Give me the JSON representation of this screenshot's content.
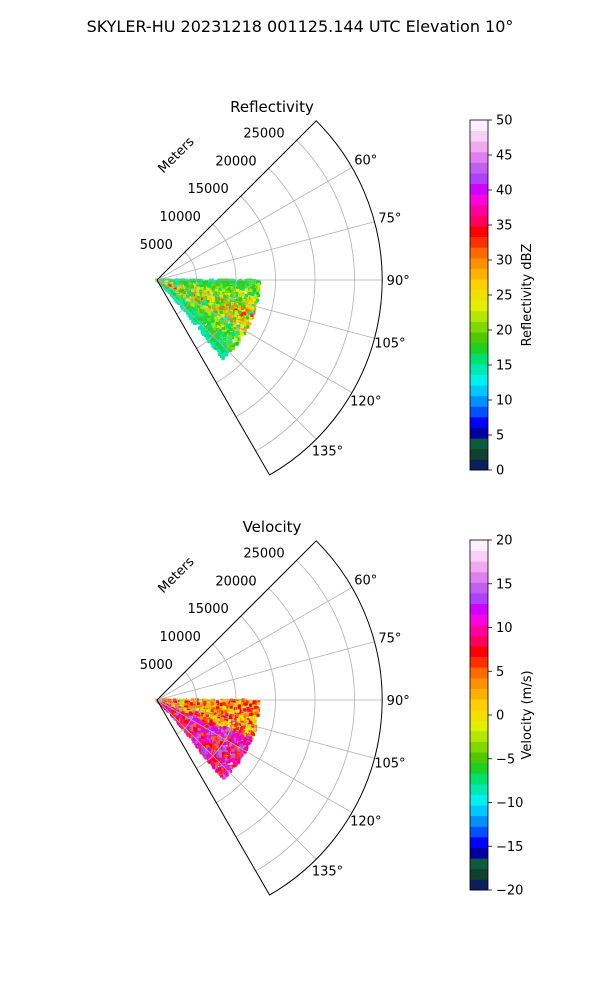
{
  "figure_title": "SKYLER-HU  20231218  001125.144 UTC Elevation 10°",
  "chart_data": [
    {
      "type": "heatmap",
      "title": "Reflectivity",
      "radial_label": "Meters",
      "range_ticks": [
        5000,
        10000,
        15000,
        20000,
        25000
      ],
      "range_tick_labels": [
        "5000",
        "10000",
        "15000",
        "20000",
        "25000"
      ],
      "range_limit": [
        0,
        28500
      ],
      "azimuth_range_deg": [
        45,
        150
      ],
      "azimuth_ticks": [
        60,
        75,
        90,
        105,
        120,
        135
      ],
      "azimuth_tick_labels": [
        "60°",
        "75°",
        "90°",
        "105°",
        "120°",
        "135°"
      ],
      "grid": true,
      "colorbar": {
        "label": "Reflectivity dBZ",
        "range": [
          0,
          50
        ],
        "ticks": [
          0,
          5,
          10,
          15,
          20,
          25,
          30,
          35,
          40,
          45,
          50
        ],
        "tick_labels": [
          "0",
          "5",
          "10",
          "15",
          "20",
          "25",
          "30",
          "35",
          "40",
          "45",
          "50"
        ],
        "colors": [
          "#0a1f5c",
          "#124030",
          "#0c5a40",
          "#0000a0",
          "#0000ff",
          "#0050ff",
          "#0090ff",
          "#00c8ff",
          "#00f0f0",
          "#00e8b0",
          "#00e070",
          "#20d020",
          "#50c800",
          "#80d800",
          "#b0e800",
          "#e0f000",
          "#f0e000",
          "#ffd000",
          "#ffb000",
          "#ff9000",
          "#ff6a00",
          "#ff3000",
          "#ff0000",
          "#ff0060",
          "#ff00a0",
          "#ff00e0",
          "#d000ff",
          "#b040ff",
          "#c060f0",
          "#e080f0",
          "#f0a8f0",
          "#f8d0f8",
          "#fff0ff"
        ]
      },
      "echo_range_extent": [
        0,
        13000
      ],
      "echo_azimuth_extent": [
        90,
        140
      ],
      "echo_value_range": [
        5,
        40
      ]
    },
    {
      "type": "heatmap",
      "title": "Velocity",
      "radial_label": "Meters",
      "range_ticks": [
        5000,
        10000,
        15000,
        20000,
        25000
      ],
      "range_tick_labels": [
        "5000",
        "10000",
        "15000",
        "20000",
        "25000"
      ],
      "range_limit": [
        0,
        28500
      ],
      "azimuth_range_deg": [
        45,
        150
      ],
      "azimuth_ticks": [
        60,
        75,
        90,
        105,
        120,
        135
      ],
      "azimuth_tick_labels": [
        "60°",
        "75°",
        "90°",
        "105°",
        "120°",
        "135°"
      ],
      "grid": true,
      "colorbar": {
        "label": "Velocity (m/s)",
        "range": [
          -20,
          20
        ],
        "ticks": [
          -20,
          -15,
          -10,
          -5,
          0,
          5,
          10,
          15,
          20
        ],
        "tick_labels": [
          "−20",
          "−15",
          "−10",
          "−5",
          "0",
          "5",
          "10",
          "15",
          "20"
        ],
        "colors": [
          "#0a1f5c",
          "#124030",
          "#0c5a40",
          "#0000a0",
          "#0000ff",
          "#0050ff",
          "#0090ff",
          "#00c8ff",
          "#00f0f0",
          "#00e8b0",
          "#00e070",
          "#20d020",
          "#50c800",
          "#80d800",
          "#b0e800",
          "#e0f000",
          "#f0e000",
          "#ffd000",
          "#ffb000",
          "#ff9000",
          "#ff6a00",
          "#ff3000",
          "#ff0000",
          "#ff0060",
          "#ff00a0",
          "#ff00e0",
          "#d000ff",
          "#b040ff",
          "#c060f0",
          "#e080f0",
          "#f0a8f0",
          "#f8d0f8",
          "#fff0ff"
        ]
      },
      "echo_range_extent": [
        0,
        13000
      ],
      "echo_azimuth_extent": [
        90,
        140
      ],
      "echo_value_range": [
        -8,
        15
      ]
    }
  ]
}
